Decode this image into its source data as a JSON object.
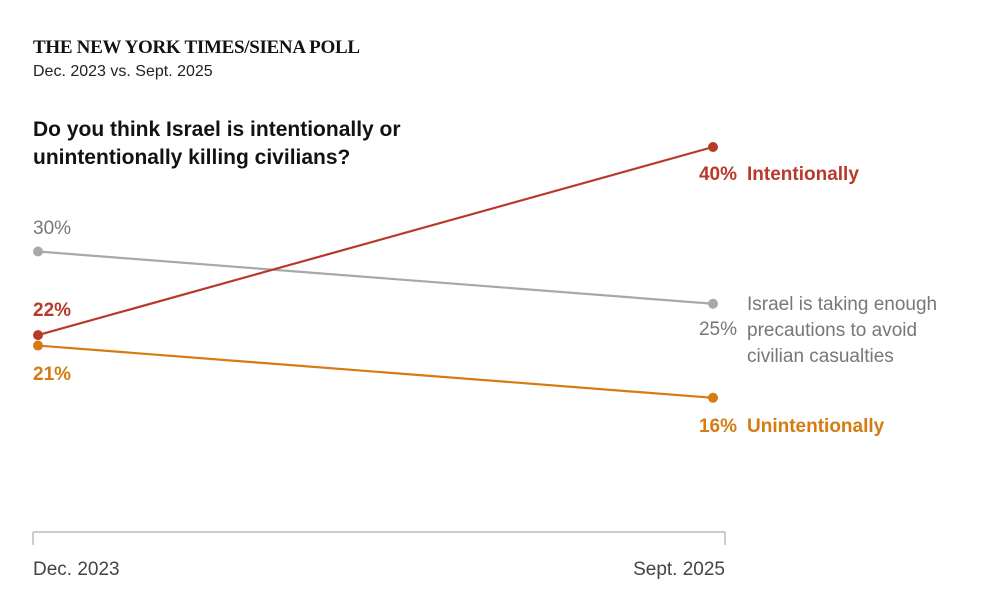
{
  "header": {
    "brand": "THE NEW YORK TIMES/SIENA POLL",
    "subtitle": "Dec. 2023 vs. Sept. 2025",
    "question": "Do you think Israel is intentionally or unintentionally killing civilians?"
  },
  "chart_data": {
    "type": "line",
    "title": "Do you think Israel is intentionally or unintentionally killing civilians?",
    "categories": [
      "Dec. 2023",
      "Sept. 2025"
    ],
    "series": [
      {
        "name": "Intentionally",
        "values": [
          22,
          40
        ],
        "labels": [
          "22%",
          "40%"
        ],
        "color": "#b8392a"
      },
      {
        "name": "Israel is taking enough precautions to avoid civilian casualties",
        "name_lines": [
          "Israel is taking enough",
          "precautions to avoid",
          "civilian casualties"
        ],
        "values": [
          30,
          25
        ],
        "labels": [
          "30%",
          "25%"
        ],
        "color": "#a8a8a8"
      },
      {
        "name": "Unintentionally",
        "values": [
          21,
          16
        ],
        "labels": [
          "21%",
          "16%"
        ],
        "color": "#d47b12"
      }
    ],
    "grid": false,
    "legend": "inline-right"
  }
}
